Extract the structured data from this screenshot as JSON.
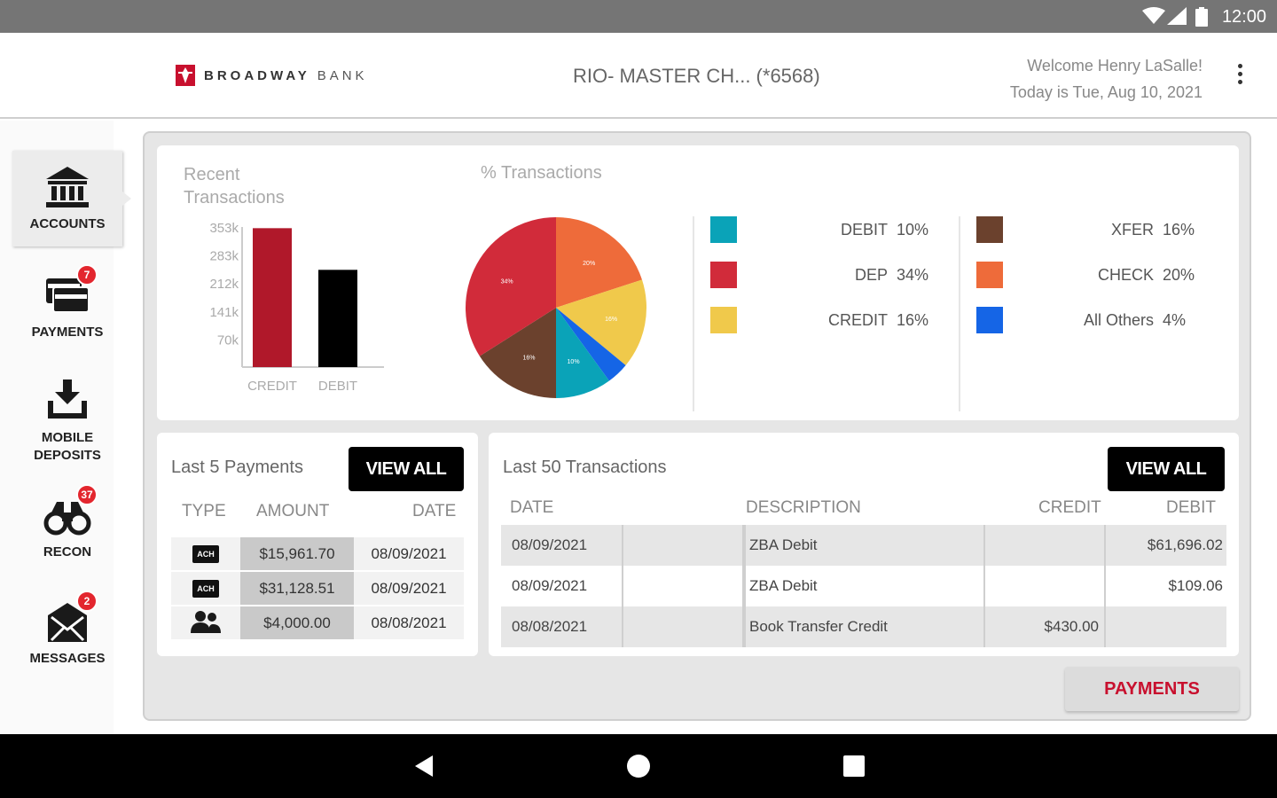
{
  "status": {
    "time": "12:00"
  },
  "header": {
    "brand_bold": "BROADWAY",
    "brand_thin": "BANK",
    "account": "RIO- MASTER CH...  (*6568)",
    "welcome": "Welcome Henry LaSalle!",
    "date": "Today is Tue, Aug 10, 2021"
  },
  "sidebar": {
    "items": [
      {
        "label": "ACCOUNTS",
        "icon": "bank-icon"
      },
      {
        "label": "PAYMENTS",
        "icon": "cards-icon",
        "badge": "7"
      },
      {
        "label": "MOBILE DEPOSITS",
        "icon": "download-tray-icon"
      },
      {
        "label": "RECON",
        "icon": "binoculars-icon",
        "badge": "37"
      },
      {
        "label": "MESSAGES",
        "icon": "envelope-icon",
        "badge": "2"
      }
    ]
  },
  "recent": {
    "title": "Recent Transactions",
    "chart_data": {
      "type": "bar",
      "categories": [
        "CREDIT",
        "DEBIT"
      ],
      "values": [
        350,
        245
      ],
      "ylim": [
        0,
        353
      ],
      "yticks": [
        "353k",
        "283k",
        "212k",
        "141k",
        "70k"
      ],
      "yticks_values": [
        353,
        283,
        212,
        141,
        70
      ],
      "colors": [
        "#b0182a",
        "#000000"
      ]
    }
  },
  "percent": {
    "title": "% Transactions",
    "chart_data": {
      "type": "pie",
      "categories": [
        "CHECK",
        "CREDIT",
        "All Others",
        "DEBIT",
        "XFER",
        "DEP"
      ],
      "values": [
        20,
        16,
        4,
        10,
        16,
        34
      ],
      "colors": [
        "#ee6b3a",
        "#f0c94b",
        "#1565e6",
        "#0aa3b8",
        "#6b412d",
        "#d12b3a"
      ]
    },
    "legend_left": [
      {
        "label": "DEBIT",
        "pct": "10%",
        "color": "#0aa3b8"
      },
      {
        "label": "DEP",
        "pct": "34%",
        "color": "#d12b3a"
      },
      {
        "label": "CREDIT",
        "pct": "16%",
        "color": "#f0c94b"
      }
    ],
    "legend_right": [
      {
        "label": "XFER",
        "pct": "16%",
        "color": "#6b412d"
      },
      {
        "label": "CHECK",
        "pct": "20%",
        "color": "#ee6b3a"
      },
      {
        "label": "All Others",
        "pct": "4%",
        "color": "#1565e6"
      }
    ]
  },
  "payments": {
    "title": "Last 5 Payments",
    "view_all": "VIEW ALL",
    "headers": {
      "type": "TYPE",
      "amount": "AMOUNT",
      "date": "DATE"
    },
    "rows": [
      {
        "type": "ACH",
        "amount": "$15,961.70",
        "date": "08/09/2021"
      },
      {
        "type": "ACH",
        "amount": "$31,128.51",
        "date": "08/09/2021"
      },
      {
        "type": "people-icon",
        "amount": "$4,000.00",
        "date": "08/08/2021"
      }
    ]
  },
  "transactions": {
    "title": "Last 50 Transactions",
    "view_all": "VIEW ALL",
    "headers": {
      "date": "DATE",
      "description": "DESCRIPTION",
      "credit": "CREDIT",
      "debit": "DEBIT"
    },
    "rows": [
      {
        "date": "08/09/2021",
        "description": "ZBA Debit",
        "credit": "",
        "debit": "$61,696.02"
      },
      {
        "date": "08/09/2021",
        "description": "ZBA Debit",
        "credit": "",
        "debit": "$109.06"
      },
      {
        "date": "08/08/2021",
        "description": "Book Transfer Credit",
        "credit": "$430.00",
        "debit": ""
      }
    ]
  },
  "footer": {
    "payments_button": "PAYMENTS"
  }
}
